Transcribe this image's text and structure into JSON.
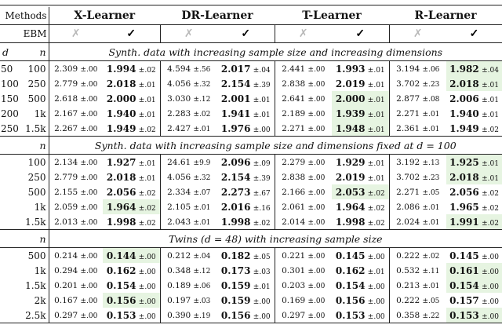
{
  "header": {
    "methods_label": "Methods",
    "learners": [
      "X-Learner",
      "DR-Learner",
      "T-Learner",
      "R-Learner"
    ],
    "ebm_label": "EBM",
    "ebm_off": "✗",
    "ebm_on": "✓",
    "d_label": "d",
    "n_label": "n"
  },
  "sections": [
    {
      "title": "Synth. data with increasing sample size and increasing dimensions",
      "show_d": true,
      "rows": [
        {
          "d": "50",
          "n": "100",
          "cells": [
            {
              "v": "2.309",
              "s": "±.00"
            },
            {
              "v": "1.994",
              "s": "±.02",
              "best": true
            },
            {
              "v": "4.594",
              "s": "±.56"
            },
            {
              "v": "2.017",
              "s": "±.04",
              "best": true
            },
            {
              "v": "2.441",
              "s": "±.00"
            },
            {
              "v": "1.993",
              "s": "±.01",
              "best": true
            },
            {
              "v": "3.194",
              "s": "±.06"
            },
            {
              "v": "1.982",
              "s": "±.04",
              "best": true,
              "hl": true
            }
          ]
        },
        {
          "d": "100",
          "n": "250",
          "cells": [
            {
              "v": "2.779",
              "s": "±.00"
            },
            {
              "v": "2.018",
              "s": "±.01",
              "best": true
            },
            {
              "v": "4.056",
              "s": "±.32"
            },
            {
              "v": "2.154",
              "s": "±.39",
              "best": true
            },
            {
              "v": "2.838",
              "s": "±.00"
            },
            {
              "v": "2.019",
              "s": "±.01",
              "best": true
            },
            {
              "v": "3.702",
              "s": "±.23"
            },
            {
              "v": "2.018",
              "s": "±.01",
              "best": true,
              "hl": true
            }
          ]
        },
        {
          "d": "150",
          "n": "500",
          "cells": [
            {
              "v": "2.618",
              "s": "±.00"
            },
            {
              "v": "2.000",
              "s": "±.01",
              "best": true
            },
            {
              "v": "3.030",
              "s": "±.12"
            },
            {
              "v": "2.001",
              "s": "±.01",
              "best": true
            },
            {
              "v": "2.641",
              "s": "±.00"
            },
            {
              "v": "2.000",
              "s": "±.01",
              "best": true,
              "hl": true
            },
            {
              "v": "2.877",
              "s": "±.08"
            },
            {
              "v": "2.006",
              "s": "±.01",
              "best": true
            }
          ]
        },
        {
          "d": "200",
          "n": "1k",
          "cells": [
            {
              "v": "2.167",
              "s": "±.00"
            },
            {
              "v": "1.940",
              "s": "±.01",
              "best": true
            },
            {
              "v": "2.283",
              "s": "±.02"
            },
            {
              "v": "1.941",
              "s": "±.01",
              "best": true
            },
            {
              "v": "2.189",
              "s": "±.00"
            },
            {
              "v": "1.939",
              "s": "±.01",
              "best": true,
              "hl": true
            },
            {
              "v": "2.271",
              "s": "±.01"
            },
            {
              "v": "1.940",
              "s": "±.01",
              "best": true
            }
          ]
        },
        {
          "d": "250",
          "n": "1.5k",
          "cells": [
            {
              "v": "2.267",
              "s": "±.00"
            },
            {
              "v": "1.949",
              "s": "±.02",
              "best": true
            },
            {
              "v": "2.427",
              "s": "±.01"
            },
            {
              "v": "1.976",
              "s": "±.00",
              "best": true
            },
            {
              "v": "2.271",
              "s": "±.00"
            },
            {
              "v": "1.948",
              "s": "±.01",
              "best": true,
              "hl": true
            },
            {
              "v": "2.361",
              "s": "±.01"
            },
            {
              "v": "1.949",
              "s": "±.02",
              "best": true
            }
          ]
        }
      ]
    },
    {
      "title": "Synth. data with increasing sample size and dimensions fixed at d = 100",
      "show_d": false,
      "rows": [
        {
          "d": "",
          "n": "100",
          "cells": [
            {
              "v": "2.134",
              "s": "±.00"
            },
            {
              "v": "1.927",
              "s": "±.01",
              "best": true
            },
            {
              "v": "24.61",
              "s": "±9.9"
            },
            {
              "v": "2.096",
              "s": "±.09",
              "best": true
            },
            {
              "v": "2.279",
              "s": "±.00"
            },
            {
              "v": "1.929",
              "s": "±.01",
              "best": true
            },
            {
              "v": "3.192",
              "s": "±.13"
            },
            {
              "v": "1.925",
              "s": "±.01",
              "best": true,
              "hl": true
            }
          ]
        },
        {
          "d": "",
          "n": "250",
          "cells": [
            {
              "v": "2.779",
              "s": "±.00"
            },
            {
              "v": "2.018",
              "s": "±.01",
              "best": true
            },
            {
              "v": "4.056",
              "s": "±.32"
            },
            {
              "v": "2.154",
              "s": "±.39",
              "best": true
            },
            {
              "v": "2.838",
              "s": "±.00"
            },
            {
              "v": "2.019",
              "s": "±.01",
              "best": true
            },
            {
              "v": "3.702",
              "s": "±.23"
            },
            {
              "v": "2.018",
              "s": "±.01",
              "best": true,
              "hl": true
            }
          ]
        },
        {
          "d": "",
          "n": "500",
          "cells": [
            {
              "v": "2.155",
              "s": "±.00"
            },
            {
              "v": "2.056",
              "s": "±.02",
              "best": true
            },
            {
              "v": "2.334",
              "s": "±.07"
            },
            {
              "v": "2.273",
              "s": "±.67",
              "best": true
            },
            {
              "v": "2.166",
              "s": "±.00"
            },
            {
              "v": "2.053",
              "s": "±.02",
              "best": true,
              "hl": true
            },
            {
              "v": "2.271",
              "s": "±.05"
            },
            {
              "v": "2.056",
              "s": "±.02",
              "best": true
            }
          ]
        },
        {
          "d": "",
          "n": "1k",
          "cells": [
            {
              "v": "2.059",
              "s": "±.00"
            },
            {
              "v": "1.964",
              "s": "±.02",
              "best": true,
              "hl": true
            },
            {
              "v": "2.105",
              "s": "±.01"
            },
            {
              "v": "2.016",
              "s": "±.16",
              "best": true
            },
            {
              "v": "2.061",
              "s": "±.00"
            },
            {
              "v": "1.964",
              "s": "±.02",
              "best": true
            },
            {
              "v": "2.086",
              "s": "±.01"
            },
            {
              "v": "1.965",
              "s": "±.02",
              "best": true
            }
          ]
        },
        {
          "d": "",
          "n": "1.5k",
          "cells": [
            {
              "v": "2.013",
              "s": "±.00"
            },
            {
              "v": "1.998",
              "s": "±.02",
              "best": true
            },
            {
              "v": "2.043",
              "s": "±.01"
            },
            {
              "v": "1.998",
              "s": "±.02",
              "best": true
            },
            {
              "v": "2.014",
              "s": "±.00"
            },
            {
              "v": "1.998",
              "s": "±.02",
              "best": true
            },
            {
              "v": "2.024",
              "s": "±.01"
            },
            {
              "v": "1.991",
              "s": "±.02",
              "best": true,
              "hl": true
            }
          ]
        }
      ]
    },
    {
      "title": "Twins (d = 48) with increasing sample size",
      "show_d": false,
      "rows": [
        {
          "d": "",
          "n": "500",
          "cells": [
            {
              "v": "0.214",
              "s": "±.00"
            },
            {
              "v": "0.144",
              "s": "±.00",
              "best": true,
              "hl": true
            },
            {
              "v": "0.212",
              "s": "±.04"
            },
            {
              "v": "0.182",
              "s": "±.05",
              "best": true
            },
            {
              "v": "0.221",
              "s": "±.00"
            },
            {
              "v": "0.145",
              "s": "±.00",
              "best": true
            },
            {
              "v": "0.222",
              "s": "±.02"
            },
            {
              "v": "0.145",
              "s": "±.00",
              "best": true
            }
          ]
        },
        {
          "d": "",
          "n": "1k",
          "cells": [
            {
              "v": "0.294",
              "s": "±.00"
            },
            {
              "v": "0.162",
              "s": "±.00",
              "best": true
            },
            {
              "v": "0.348",
              "s": "±.12"
            },
            {
              "v": "0.173",
              "s": "±.03",
              "best": true
            },
            {
              "v": "0.301",
              "s": "±.00"
            },
            {
              "v": "0.162",
              "s": "±.01",
              "best": true
            },
            {
              "v": "0.532",
              "s": "±.11"
            },
            {
              "v": "0.161",
              "s": "±.00",
              "best": true,
              "hl": true
            }
          ]
        },
        {
          "d": "",
          "n": "1.5k",
          "cells": [
            {
              "v": "0.201",
              "s": "±.00"
            },
            {
              "v": "0.154",
              "s": "±.00",
              "best": true
            },
            {
              "v": "0.189",
              "s": "±.06"
            },
            {
              "v": "0.159",
              "s": "±.01",
              "best": true
            },
            {
              "v": "0.203",
              "s": "±.00"
            },
            {
              "v": "0.154",
              "s": "±.00",
              "best": true
            },
            {
              "v": "0.213",
              "s": "±.01"
            },
            {
              "v": "0.154",
              "s": "±.00",
              "best": true,
              "hl": true
            }
          ]
        },
        {
          "d": "",
          "n": "2k",
          "cells": [
            {
              "v": "0.167",
              "s": "±.00"
            },
            {
              "v": "0.156",
              "s": "±.00",
              "best": true,
              "hl": true
            },
            {
              "v": "0.197",
              "s": "±.03"
            },
            {
              "v": "0.159",
              "s": "±.00",
              "best": true
            },
            {
              "v": "0.169",
              "s": "±.00"
            },
            {
              "v": "0.156",
              "s": "±.00",
              "best": true
            },
            {
              "v": "0.222",
              "s": "±.05"
            },
            {
              "v": "0.157",
              "s": "±.00",
              "best": true
            }
          ]
        },
        {
          "d": "",
          "n": "2.5k",
          "cells": [
            {
              "v": "0.297",
              "s": "±.00"
            },
            {
              "v": "0.153",
              "s": "±.00",
              "best": true
            },
            {
              "v": "0.390",
              "s": "±.19"
            },
            {
              "v": "0.156",
              "s": "±.00",
              "best": true
            },
            {
              "v": "0.297",
              "s": "±.00"
            },
            {
              "v": "0.153",
              "s": "±.00",
              "best": true
            },
            {
              "v": "0.358",
              "s": "±.22"
            },
            {
              "v": "0.153",
              "s": "±.00",
              "best": true,
              "hl": true
            }
          ]
        }
      ]
    }
  ]
}
